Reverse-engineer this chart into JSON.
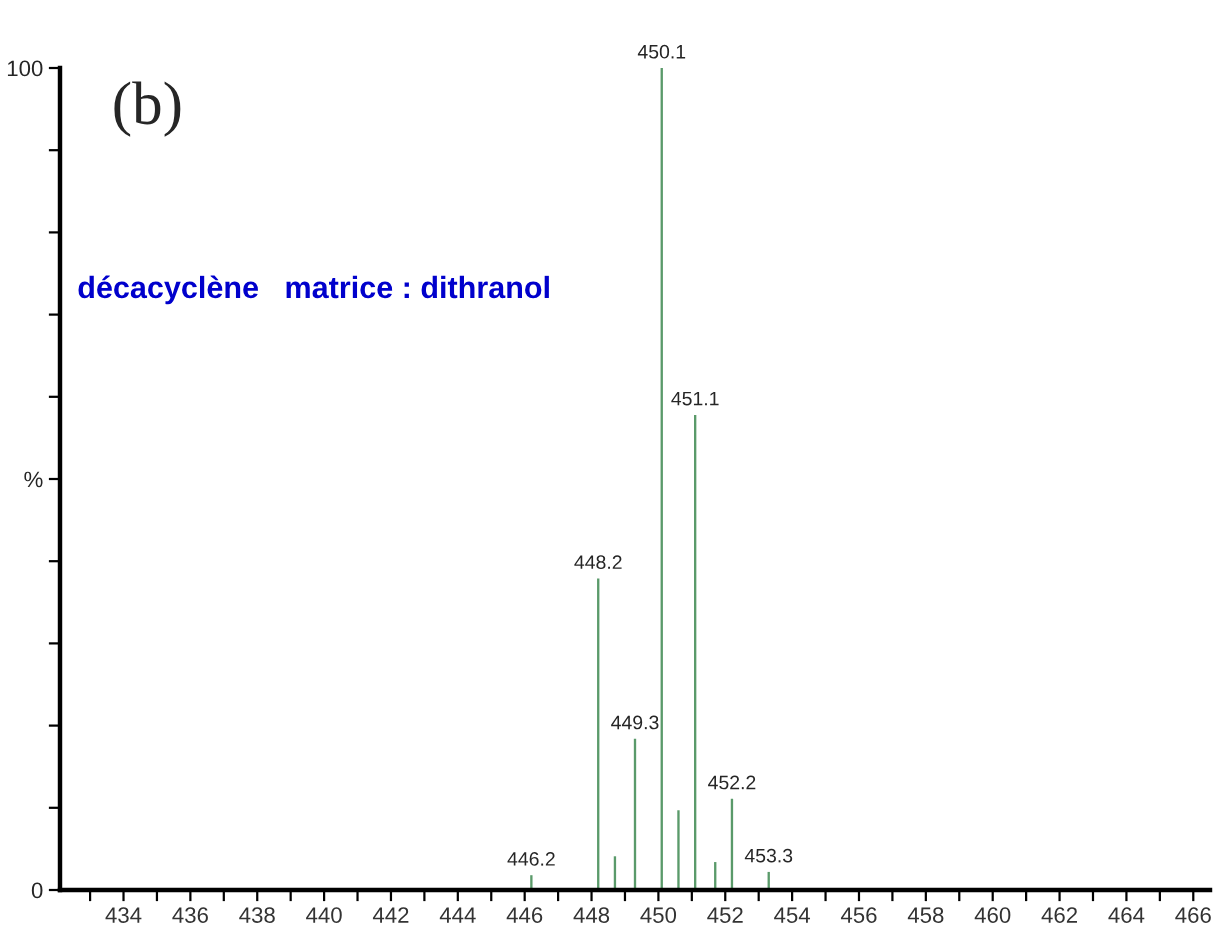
{
  "chart_data": {
    "type": "bar",
    "x": [
      446.2,
      448.2,
      448.7,
      449.3,
      450.1,
      450.6,
      451.1,
      451.7,
      452.2,
      453.3
    ],
    "values": [
      1.8,
      37.9,
      4.1,
      18.4,
      100,
      9.7,
      57.8,
      3.4,
      11.1,
      2.2
    ],
    "color": "#5a9a6a",
    "xlim": [
      432.1,
      466.5
    ],
    "xticks": [
      {
        "value": 433,
        "label": null
      },
      434,
      {
        "value": 435,
        "label": null
      },
      436,
      {
        "value": 437,
        "label": null
      },
      438,
      {
        "value": 439,
        "label": null
      },
      440,
      {
        "value": 441,
        "label": null
      },
      442,
      {
        "value": 443,
        "label": null
      },
      444,
      {
        "value": 445,
        "label": null
      },
      446,
      {
        "value": 447,
        "label": null
      },
      448,
      {
        "value": 449,
        "label": null
      },
      450,
      {
        "value": 451,
        "label": null
      },
      452,
      {
        "value": 453,
        "label": null
      },
      454,
      {
        "value": 455,
        "label": null
      },
      456,
      {
        "value": 457,
        "label": null
      },
      458,
      {
        "value": 459,
        "label": null
      },
      460,
      {
        "value": 461,
        "label": null
      },
      462,
      {
        "value": 463,
        "label": null
      },
      464,
      {
        "value": 465,
        "label": null
      },
      466
    ],
    "ylim": [
      0,
      100
    ],
    "yticks": [
      0,
      {
        "value": 10,
        "label": null
      },
      {
        "value": 20,
        "label": null
      },
      {
        "value": 30,
        "label": null
      },
      {
        "value": 40,
        "label": null
      },
      {
        "value": 50,
        "label": "%"
      },
      {
        "value": 60,
        "label": null
      },
      {
        "value": 70,
        "label": null
      },
      {
        "value": 80,
        "label": null
      },
      {
        "value": 90,
        "label": null
      },
      100
    ],
    "grid": false,
    "annotations": [
      {
        "text": "446.2",
        "x": 446.2,
        "y": 1.8
      },
      {
        "text": "448.2",
        "x": 448.2,
        "y": 37.9
      },
      {
        "text": "449.3",
        "x": 449.3,
        "y": 18.4
      },
      {
        "text": "450.1",
        "x": 450.1,
        "y": 100
      },
      {
        "text": "451.1",
        "x": 451.1,
        "y": 57.8
      },
      {
        "text": "452.2",
        "x": 452.2,
        "y": 11.1
      },
      {
        "text": "453.3",
        "x": 453.3,
        "y": 2.2
      },
      "(b)",
      "décacyclène   matrice : dithranol"
    ]
  }
}
